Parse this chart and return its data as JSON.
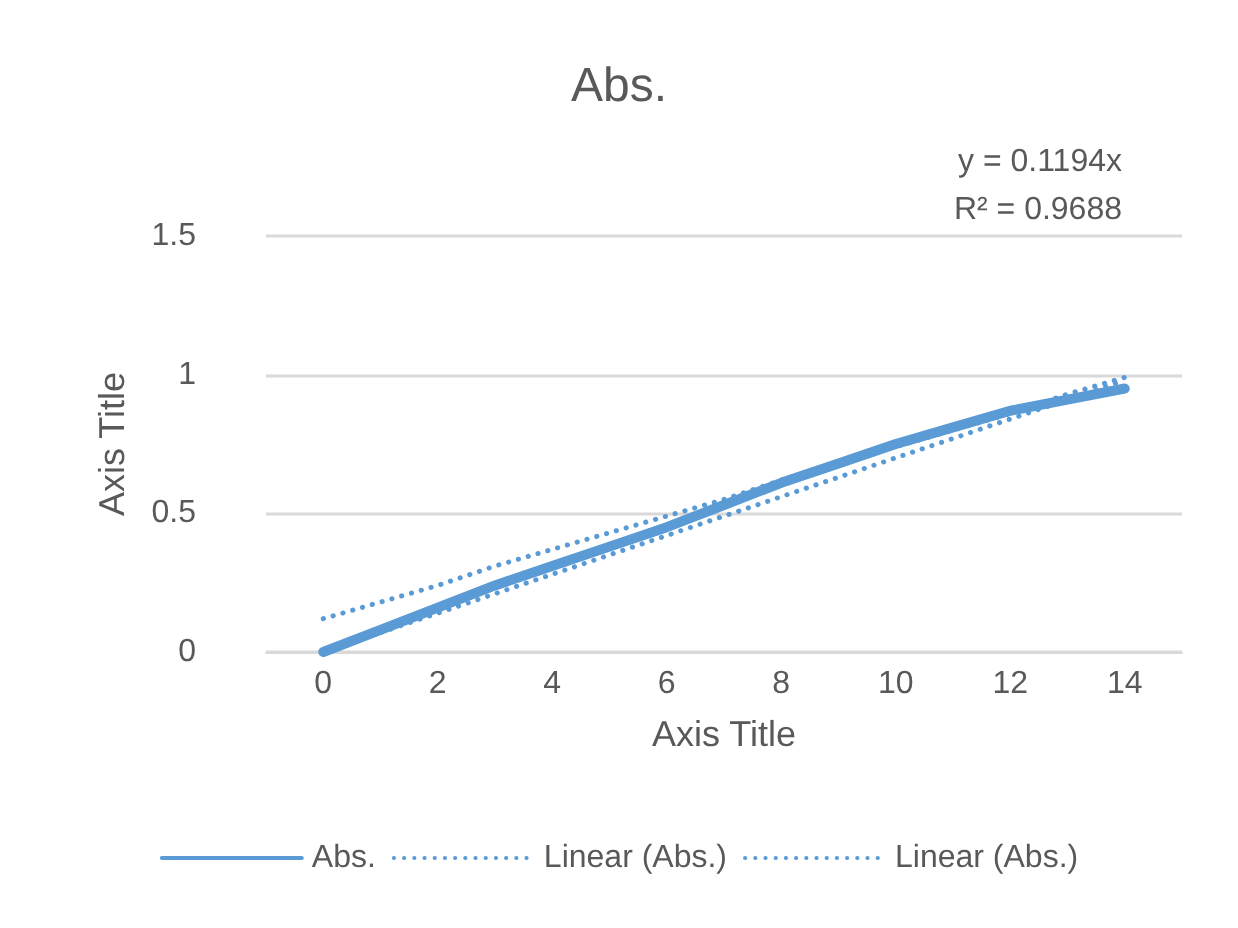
{
  "chart_data": {
    "type": "line",
    "title": "Abs.",
    "xlabel": "Axis Title",
    "ylabel": "Axis Title",
    "annotations": [
      "y = 0.1194x",
      "R² = 0.9688"
    ],
    "x": [
      0,
      1,
      2,
      3,
      4,
      5,
      6,
      7,
      8,
      9,
      10,
      11,
      12,
      13,
      14
    ],
    "series": [
      {
        "name": "Abs.",
        "color": "#5b9bd5",
        "line_style": "solid",
        "values": [
          0.0,
          0.08,
          0.16,
          0.24,
          0.31,
          0.38,
          0.45,
          0.53,
          0.61,
          0.68,
          0.75,
          0.81,
          0.87,
          0.91,
          0.95
        ]
      },
      {
        "name": "Linear (Abs.)",
        "color": "#5b9bd5",
        "line_style": "dotted",
        "values": [
          0.12,
          0.18,
          0.24,
          0.31,
          0.37,
          0.43,
          0.49,
          0.55,
          0.62,
          0.68,
          0.74,
          0.8,
          0.86,
          0.93,
          0.99
        ]
      },
      {
        "name": "Linear (Abs.)",
        "color": "#5b9bd5",
        "line_style": "dotted",
        "values": [
          0.0,
          0.07,
          0.14,
          0.21,
          0.28,
          0.35,
          0.42,
          0.49,
          0.56,
          0.63,
          0.7,
          0.77,
          0.84,
          0.91,
          0.98
        ]
      }
    ],
    "xlim": [
      -1,
      15
    ],
    "xticks": [
      0,
      2,
      4,
      6,
      8,
      10,
      12,
      14
    ],
    "ylim": [
      0,
      1.5
    ],
    "yticks": [
      0,
      0.5,
      1,
      1.5
    ],
    "grid": "y",
    "legend": "bottom",
    "marker": "none"
  }
}
